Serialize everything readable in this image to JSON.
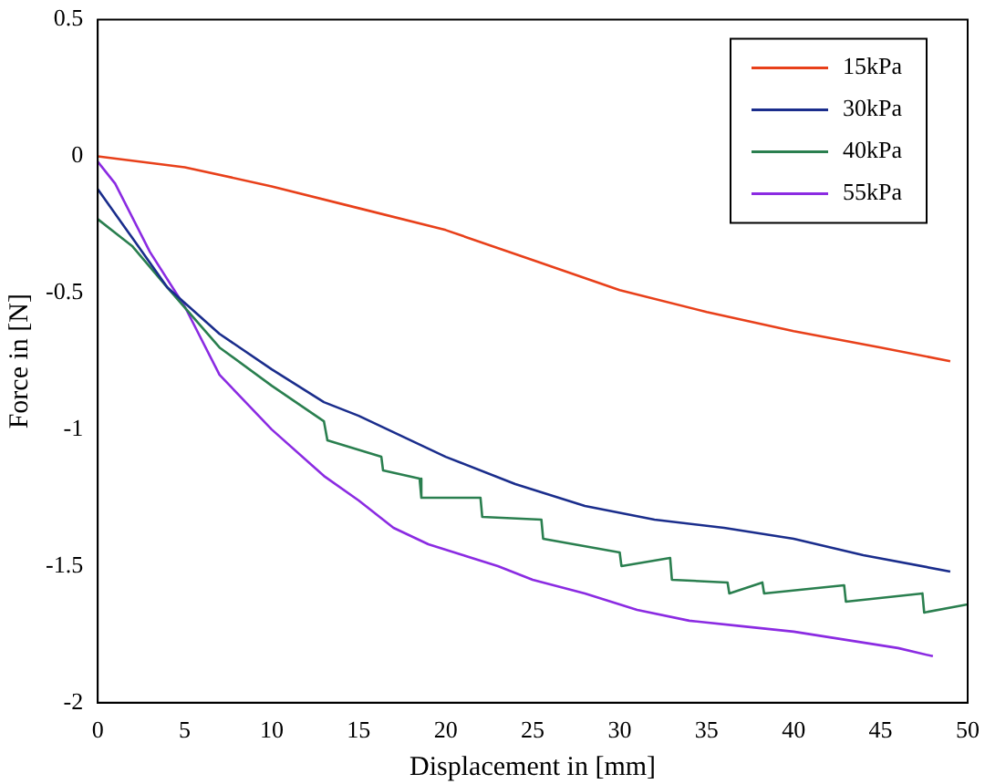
{
  "chart_data": {
    "type": "line",
    "xlabel": "Displacement in [mm]",
    "ylabel": "Force in [N]",
    "xlim": [
      0,
      50
    ],
    "ylim": [
      -2,
      0.5
    ],
    "xticks": [
      0,
      5,
      10,
      15,
      20,
      25,
      30,
      35,
      40,
      45,
      50
    ],
    "yticks": [
      -2,
      -1.5,
      -1,
      -0.5,
      0,
      0.5
    ],
    "grid": false,
    "legend": "top right",
    "marker": "none",
    "line_style": "solid",
    "series": [
      {
        "name": "15kPa",
        "color": "#e8401a",
        "x": [
          0,
          5,
          10,
          15,
          20,
          25,
          30,
          35,
          40,
          45,
          49
        ],
        "values": [
          0,
          -0.04,
          -0.11,
          -0.19,
          -0.27,
          -0.38,
          -0.49,
          -0.57,
          -0.64,
          -0.7,
          -0.75
        ]
      },
      {
        "name": "30kPa",
        "color": "#1a2d8c",
        "x": [
          0,
          2,
          4,
          7,
          10,
          13,
          15,
          18,
          20,
          24,
          28,
          32,
          36,
          40,
          44,
          49
        ],
        "values": [
          -0.12,
          -0.3,
          -0.48,
          -0.65,
          -0.78,
          -0.9,
          -0.95,
          -1.04,
          -1.1,
          -1.2,
          -1.28,
          -1.33,
          -1.36,
          -1.4,
          -1.46,
          -1.52
        ]
      },
      {
        "name": "40kPa",
        "color": "#2a7f4f",
        "x": [
          0,
          2,
          4,
          7,
          10,
          13,
          13.2,
          16.3,
          16.4,
          18.5,
          18.6,
          22,
          22.1,
          25.5,
          25.6,
          30,
          30.1,
          32.9,
          33,
          36.2,
          36.3,
          38.2,
          38.3,
          42.9,
          43,
          47.4,
          47.5,
          50
        ],
        "values": [
          -0.23,
          -0.33,
          -0.48,
          -0.7,
          -0.84,
          -0.97,
          -1.04,
          -1.1,
          -1.15,
          -1.18,
          -1.25,
          -1.25,
          -1.32,
          -1.33,
          -1.4,
          -1.45,
          -1.5,
          -1.47,
          -1.55,
          -1.56,
          -1.6,
          -1.56,
          -1.6,
          -1.57,
          -1.63,
          -1.6,
          -1.67,
          -1.64
        ]
      },
      {
        "name": "55kPa",
        "color": "#8b2be2",
        "x": [
          0,
          1,
          3,
          5,
          7,
          10,
          13,
          15,
          17,
          19,
          21,
          23,
          25,
          28,
          31,
          34,
          37,
          40,
          43,
          46,
          48
        ],
        "values": [
          -0.02,
          -0.1,
          -0.35,
          -0.55,
          -0.8,
          -1.0,
          -1.17,
          -1.26,
          -1.36,
          -1.42,
          -1.46,
          -1.5,
          -1.55,
          -1.6,
          -1.66,
          -1.7,
          -1.72,
          -1.74,
          -1.77,
          -1.8,
          -1.83
        ]
      }
    ]
  }
}
